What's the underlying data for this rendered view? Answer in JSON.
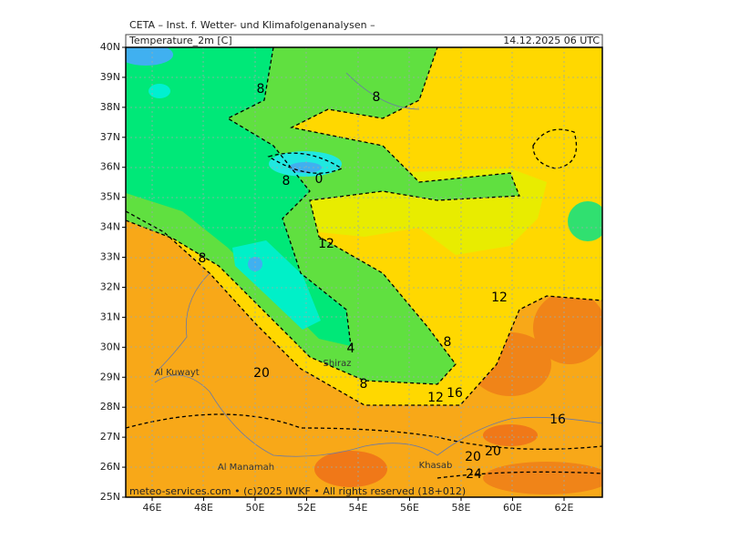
{
  "header": {
    "institute": "CETA – Inst. f. Wetter- und Klimafolgenanalysen –",
    "field": "Temperature_2m [C]",
    "valid_time": "14.12.2025 06 UTC"
  },
  "map": {
    "lat_labels": [
      "40N",
      "39N",
      "38N",
      "37N",
      "36N",
      "35N",
      "34N",
      "33N",
      "32N",
      "31N",
      "30N",
      "29N",
      "28N",
      "27N",
      "26N",
      "25N"
    ],
    "lon_labels": [
      "46E",
      "48E",
      "50E",
      "52E",
      "54E",
      "56E",
      "58E",
      "60E",
      "62E"
    ],
    "places": [
      "Al Kuwayt",
      "Shiraz",
      "Al Manamah",
      "Khasab"
    ],
    "contour_labels": [
      "8",
      "8",
      "8",
      "0",
      "12",
      "8",
      "12",
      "4",
      "8",
      "20",
      "8",
      "12",
      "16",
      "16",
      "20",
      "20",
      "24"
    ],
    "footer": "meteo-services.com • (c)2025 IWKF • All rights reserved (18+012)"
  }
}
